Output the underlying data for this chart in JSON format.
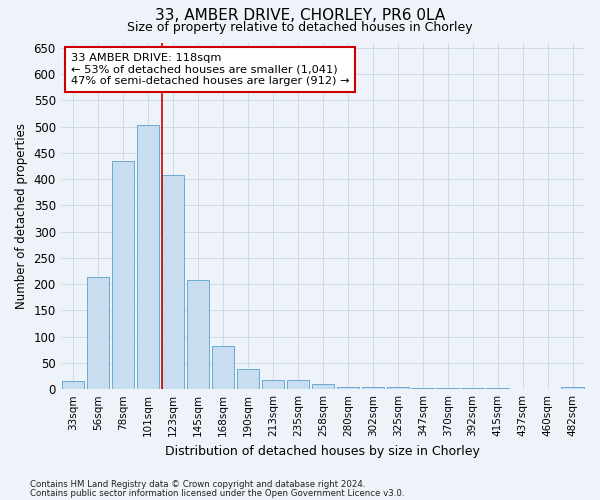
{
  "title1": "33, AMBER DRIVE, CHORLEY, PR6 0LA",
  "title2": "Size of property relative to detached houses in Chorley",
  "xlabel": "Distribution of detached houses by size in Chorley",
  "ylabel": "Number of detached properties",
  "categories": [
    "33sqm",
    "56sqm",
    "78sqm",
    "101sqm",
    "123sqm",
    "145sqm",
    "168sqm",
    "190sqm",
    "213sqm",
    "235sqm",
    "258sqm",
    "280sqm",
    "302sqm",
    "325sqm",
    "347sqm",
    "370sqm",
    "392sqm",
    "415sqm",
    "437sqm",
    "460sqm",
    "482sqm"
  ],
  "values": [
    15,
    213,
    435,
    502,
    407,
    207,
    83,
    38,
    18,
    18,
    10,
    5,
    5,
    4,
    2,
    2,
    2,
    2,
    1,
    1,
    4
  ],
  "bar_color": "#c8ddf0",
  "bar_edge_color": "#6aaad4",
  "grid_color": "#d0daea",
  "background_color": "#eef2f9",
  "red_line_index": 4,
  "annotation_line1": "33 AMBER DRIVE: 118sqm",
  "annotation_line2": "← 53% of detached houses are smaller (1,041)",
  "annotation_line3": "47% of semi-detached houses are larger (912) →",
  "annotation_box_color": "#ffffff",
  "annotation_box_edge_color": "#cc0000",
  "footer1": "Contains HM Land Registry data © Crown copyright and database right 2024.",
  "footer2": "Contains public sector information licensed under the Open Government Licence v3.0.",
  "ylim": [
    0,
    660
  ],
  "yticks": [
    0,
    50,
    100,
    150,
    200,
    250,
    300,
    350,
    400,
    450,
    500,
    550,
    600,
    650
  ]
}
